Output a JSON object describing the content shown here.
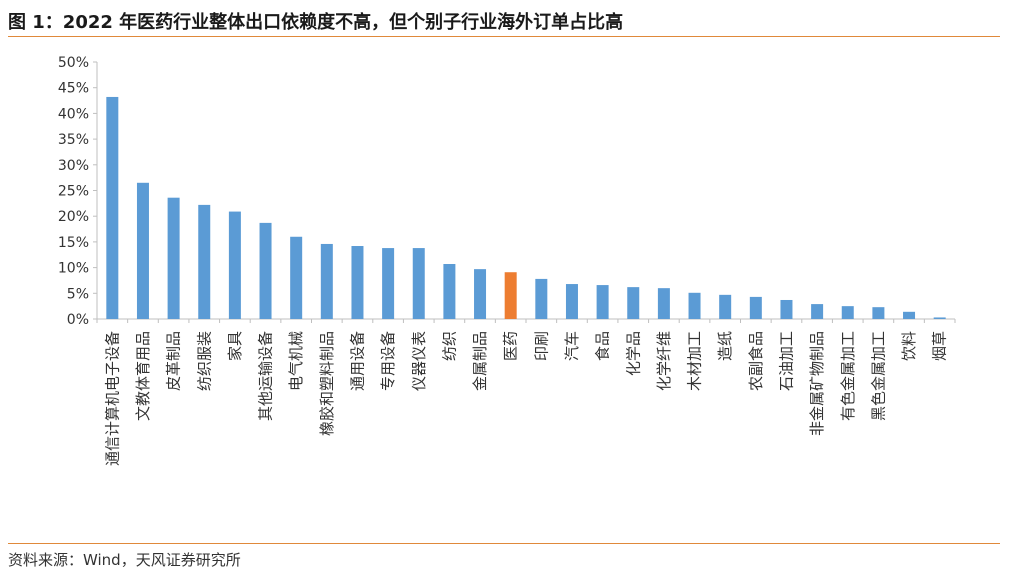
{
  "title": "图 1：2022 年医药行业整体出口依赖度不高，但个别子行业海外订单占比高",
  "source": "资料来源：Wind，天风证券研究所",
  "colors": {
    "bar": "#5b9bd5",
    "highlight": "#ed7d31",
    "rule": "#e0893a",
    "axis": "#bfbfbf"
  },
  "chart_data": {
    "type": "bar",
    "title": "",
    "xlabel": "",
    "ylabel": "",
    "ylim": [
      0,
      50
    ],
    "yticks": [
      "0%",
      "5%",
      "10%",
      "15%",
      "20%",
      "25%",
      "30%",
      "35%",
      "40%",
      "45%",
      "50%"
    ],
    "grid": false,
    "legend": "none",
    "highlight_category": "医药",
    "categories": [
      "通信计算机电子设备",
      "文教体育用品",
      "皮革制品",
      "纺织服装",
      "家具",
      "其他运输设备",
      "电气机械",
      "橡胶和塑料制品",
      "通用设备",
      "专用设备",
      "仪器仪表",
      "纺织",
      "金属制品",
      "医药",
      "印刷",
      "汽车",
      "食品",
      "化学品",
      "化学纤维",
      "木材加工",
      "造纸",
      "农副食品",
      "石油加工",
      "非金属矿物制品",
      "有色金属加工",
      "黑色金属加工",
      "饮料",
      "烟草"
    ],
    "values": [
      43.2,
      26.5,
      23.6,
      22.2,
      20.9,
      18.7,
      16.0,
      14.6,
      14.2,
      13.8,
      13.8,
      10.7,
      9.7,
      9.1,
      7.8,
      6.8,
      6.6,
      6.2,
      6.0,
      5.1,
      4.7,
      4.3,
      3.7,
      2.9,
      2.5,
      2.3,
      1.4,
      0.3
    ]
  }
}
